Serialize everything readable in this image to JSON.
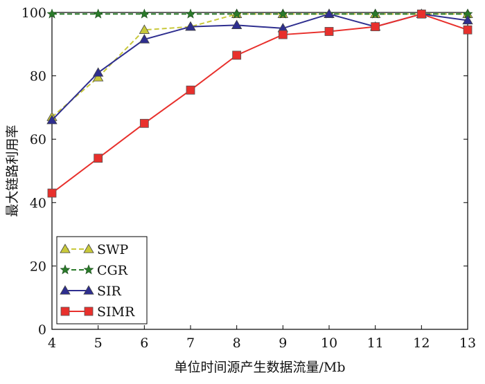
{
  "chart_data": {
    "type": "line",
    "title": "",
    "xlabel": "单位时间源产生数据流量/Mb",
    "ylabel": "最大链路利用率",
    "xlim": [
      4,
      13
    ],
    "ylim": [
      0,
      100
    ],
    "x": [
      4,
      5,
      6,
      7,
      8,
      9,
      10,
      11,
      12,
      13
    ],
    "x_ticks": [
      4,
      5,
      6,
      7,
      8,
      9,
      10,
      11,
      12,
      13
    ],
    "y_ticks": [
      0,
      20,
      40,
      60,
      80,
      100
    ],
    "grid": false,
    "legend_position": "bottom-left",
    "series": [
      {
        "name": "SWP",
        "color": "#c8c83a",
        "dash": true,
        "marker": "triangle",
        "values": [
          67,
          79.5,
          94.5,
          95.5,
          99.5,
          99.5,
          99.5,
          99.5,
          99.5,
          99.5
        ]
      },
      {
        "name": "CGR",
        "color": "#2a7a2a",
        "dash": true,
        "marker": "star",
        "values": [
          99.5,
          99.5,
          99.5,
          99.5,
          99.5,
          99.5,
          99.5,
          99.5,
          99.5,
          99.5
        ]
      },
      {
        "name": "SIR",
        "color": "#2e2e8f",
        "dash": false,
        "marker": "triangle",
        "values": [
          66,
          81,
          91.5,
          95.5,
          96,
          95,
          99.5,
          95.5,
          99.5,
          97.5
        ]
      },
      {
        "name": "SIMR",
        "color": "#e8302c",
        "dash": false,
        "marker": "square",
        "values": [
          43,
          54,
          65,
          75.5,
          86.5,
          93,
          94,
          95.5,
          99.5,
          94.5
        ]
      }
    ]
  }
}
